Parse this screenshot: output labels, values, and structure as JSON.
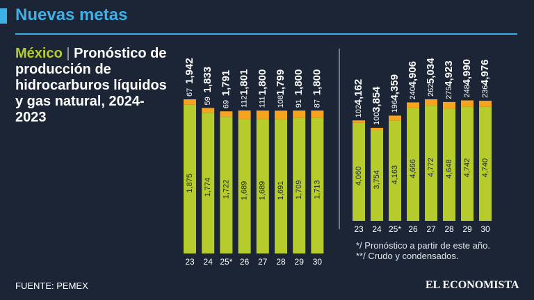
{
  "header": {
    "title": "Nuevas metas"
  },
  "description": {
    "highlight": "México",
    "separator": "|",
    "text": "Pronóstico de producción de hidrocarburos líquidos y gas natural, 2024-2023"
  },
  "source": "FUENTE: PEMEX",
  "logo": "EL ECONOMISTA",
  "chart_data": [
    {
      "type": "bar",
      "stacked": true,
      "categories": [
        "23",
        "24",
        "25*",
        "26",
        "27",
        "28",
        "29",
        "30"
      ],
      "series": [
        {
          "color": "#b6cc2c",
          "values": [
            1875,
            1774,
            1722,
            1689,
            1689,
            1691,
            1709,
            1713
          ],
          "value_labels": [
            "1,875",
            "1,774",
            "1,722",
            "1,689",
            "1,689",
            "1,691",
            "1,709",
            "1,713"
          ]
        },
        {
          "color": "#f6a31f",
          "values": [
            67,
            59,
            69,
            112,
            111,
            108,
            91,
            87
          ]
        }
      ],
      "totals": [
        1942,
        1833,
        1791,
        1801,
        1800,
        1799,
        1800,
        1800
      ],
      "total_labels": [
        "1,942",
        "1,833",
        "1,791",
        "1,801",
        "1,800",
        "1,799",
        "1,800",
        "1,800"
      ]
    },
    {
      "type": "bar",
      "stacked": true,
      "categories": [
        "23",
        "24",
        "25*",
        "26",
        "27",
        "28",
        "29",
        "30"
      ],
      "series": [
        {
          "color": "#b6cc2c",
          "values": [
            4060,
            3754,
            4163,
            4666,
            4772,
            4648,
            4742,
            4740
          ],
          "value_labels": [
            "4,060",
            "3,754",
            "4,163",
            "4,666",
            "4,772",
            "4,648",
            "4,742",
            "4,740"
          ]
        },
        {
          "color": "#f6a31f",
          "values": [
            102,
            100,
            196,
            240,
            262,
            275,
            248,
            236
          ]
        }
      ],
      "totals": [
        4162,
        3854,
        4359,
        4906,
        5034,
        4923,
        4990,
        4976
      ],
      "total_labels": [
        "4,162",
        "3,854",
        "4,359",
        "4,906",
        "5,034",
        "4,923",
        "4,990",
        "4,976"
      ],
      "notes": [
        "*/ Pronóstico a partir de este año.",
        "**/ Crudo y condensados."
      ]
    }
  ]
}
